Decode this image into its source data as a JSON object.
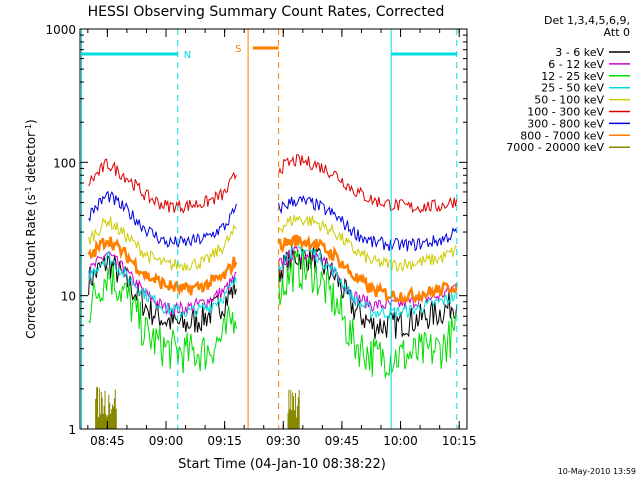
{
  "chart_data": {
    "type": "line",
    "title": "HESSI Observing Summary Count Rates, Corrected",
    "xlabel": "Start Time (04-Jan-10 08:38:22)",
    "ylabel_main": "Corrected Count Rate (s",
    "ylabel_sup1": "-1",
    "ylabel_mid": " detector",
    "ylabel_sup2": "-1",
    "ylabel_end": ")",
    "y_scale": "log",
    "ylim": [
      1,
      1000
    ],
    "xlim": [
      "08:38",
      "10:17"
    ],
    "x_ticks": [
      "08:45",
      "09:00",
      "09:15",
      "09:30",
      "09:45",
      "10:00",
      "10:15"
    ],
    "y_ticks": [
      "1",
      "10",
      "100",
      "1000"
    ],
    "legend_header": [
      "Det 1,3,4,5,6,9,",
      "Att 0"
    ],
    "legend_placement": "right",
    "footer": "10-May-2010 13:59",
    "series": [
      {
        "name": "3 - 6 keV",
        "color": "#000000",
        "day1": [
          [
            8.67,
            13
          ],
          [
            8.75,
            18
          ],
          [
            8.83,
            13
          ],
          [
            8.92,
            8
          ],
          [
            9.0,
            6.5
          ],
          [
            9.08,
            6
          ],
          [
            9.17,
            7
          ],
          [
            9.25,
            9
          ],
          [
            9.3,
            12
          ]
        ],
        "day2": [
          [
            9.48,
            15
          ],
          [
            9.55,
            20
          ],
          [
            9.63,
            19
          ],
          [
            9.72,
            14
          ],
          [
            9.8,
            8
          ],
          [
            9.88,
            6
          ],
          [
            9.97,
            6
          ],
          [
            10.05,
            6.5
          ],
          [
            10.17,
            7.5
          ],
          [
            10.24,
            9
          ]
        ]
      },
      {
        "name": "6 - 12 keV",
        "color": "#cc00cc",
        "day1": [
          [
            8.67,
            15
          ],
          [
            8.75,
            21
          ],
          [
            8.83,
            15
          ],
          [
            8.92,
            10
          ],
          [
            9.0,
            8
          ],
          [
            9.08,
            8
          ],
          [
            9.17,
            9
          ],
          [
            9.25,
            11
          ],
          [
            9.3,
            14
          ]
        ],
        "day2": [
          [
            9.48,
            17
          ],
          [
            9.55,
            21
          ],
          [
            9.63,
            20
          ],
          [
            9.72,
            15
          ],
          [
            9.8,
            10
          ],
          [
            9.88,
            8.5
          ],
          [
            9.97,
            8.5
          ],
          [
            10.05,
            9
          ],
          [
            10.17,
            10
          ],
          [
            10.24,
            12
          ]
        ]
      },
      {
        "name": "12 - 25 keV",
        "color": "#00dd00",
        "day1": [
          [
            8.67,
            8
          ],
          [
            8.75,
            15
          ],
          [
            8.83,
            10
          ],
          [
            8.92,
            5
          ],
          [
            9.0,
            4
          ],
          [
            9.08,
            3.7
          ],
          [
            9.17,
            3.8
          ],
          [
            9.25,
            5
          ],
          [
            9.3,
            8
          ]
        ],
        "day2": [
          [
            9.48,
            11
          ],
          [
            9.55,
            16
          ],
          [
            9.63,
            15
          ],
          [
            9.72,
            9
          ],
          [
            9.8,
            4.5
          ],
          [
            9.88,
            3.5
          ],
          [
            9.97,
            3.5
          ],
          [
            10.05,
            3.6
          ],
          [
            10.17,
            4
          ],
          [
            10.24,
            5.5
          ]
        ]
      },
      {
        "name": "25 - 50 keV",
        "color": "#00dddd",
        "day1": [
          [
            8.67,
            14
          ],
          [
            8.75,
            20
          ],
          [
            8.83,
            14
          ],
          [
            8.92,
            10
          ],
          [
            9.0,
            8
          ],
          [
            9.08,
            7.5
          ],
          [
            9.17,
            8
          ],
          [
            9.25,
            10
          ],
          [
            9.3,
            13
          ]
        ],
        "day2": [
          [
            9.48,
            17
          ],
          [
            9.55,
            23
          ],
          [
            9.63,
            21
          ],
          [
            9.72,
            15
          ],
          [
            9.8,
            9.5
          ],
          [
            9.88,
            7.5
          ],
          [
            9.97,
            7.5
          ],
          [
            10.05,
            7.8
          ],
          [
            10.17,
            9
          ],
          [
            10.24,
            10
          ]
        ]
      },
      {
        "name": "50 - 100 keV",
        "color": "#cccc00",
        "day1": [
          [
            8.67,
            26
          ],
          [
            8.75,
            37
          ],
          [
            8.83,
            28
          ],
          [
            8.92,
            20
          ],
          [
            9.0,
            17
          ],
          [
            9.08,
            17
          ],
          [
            9.17,
            18
          ],
          [
            9.25,
            24
          ],
          [
            9.3,
            32
          ]
        ],
        "day2": [
          [
            9.48,
            32
          ],
          [
            9.55,
            38
          ],
          [
            9.63,
            36
          ],
          [
            9.72,
            30
          ],
          [
            9.8,
            22
          ],
          [
            9.88,
            18
          ],
          [
            9.97,
            17
          ],
          [
            10.05,
            17.5
          ],
          [
            10.17,
            19
          ],
          [
            10.24,
            22
          ]
        ]
      },
      {
        "name": "100 - 300 keV",
        "color": "#dd0000",
        "day1": [
          [
            8.67,
            70
          ],
          [
            8.75,
            98
          ],
          [
            8.83,
            78
          ],
          [
            8.92,
            55
          ],
          [
            9.0,
            47
          ],
          [
            9.08,
            47
          ],
          [
            9.17,
            50
          ],
          [
            9.25,
            58
          ],
          [
            9.3,
            82
          ]
        ],
        "day2": [
          [
            9.48,
            90
          ],
          [
            9.55,
            103
          ],
          [
            9.63,
            98
          ],
          [
            9.72,
            82
          ],
          [
            9.8,
            62
          ],
          [
            9.88,
            52
          ],
          [
            9.97,
            48
          ],
          [
            10.05,
            46
          ],
          [
            10.17,
            47
          ],
          [
            10.24,
            52
          ]
        ]
      },
      {
        "name": "300 - 800 keV",
        "color": "#0000dd",
        "day1": [
          [
            8.67,
            40
          ],
          [
            8.75,
            57
          ],
          [
            8.83,
            44
          ],
          [
            8.92,
            31
          ],
          [
            9.0,
            25
          ],
          [
            9.08,
            25
          ],
          [
            9.17,
            27
          ],
          [
            9.25,
            33
          ],
          [
            9.3,
            45
          ]
        ],
        "day2": [
          [
            9.48,
            45
          ],
          [
            9.55,
            52
          ],
          [
            9.63,
            49
          ],
          [
            9.72,
            40
          ],
          [
            9.8,
            30
          ],
          [
            9.88,
            25
          ],
          [
            9.97,
            24
          ],
          [
            10.05,
            24
          ],
          [
            10.17,
            26
          ],
          [
            10.24,
            30
          ]
        ]
      },
      {
        "name": "800 - 7000 keV",
        "color": "#ff7f00",
        "day1": [
          [
            8.67,
            19
          ],
          [
            8.75,
            27
          ],
          [
            8.83,
            20
          ],
          [
            8.92,
            14
          ],
          [
            9.0,
            12
          ],
          [
            9.08,
            11
          ],
          [
            9.17,
            12
          ],
          [
            9.25,
            14
          ],
          [
            9.3,
            19
          ]
        ],
        "day2": [
          [
            9.48,
            24
          ],
          [
            9.55,
            26
          ],
          [
            9.63,
            25
          ],
          [
            9.72,
            20
          ],
          [
            9.8,
            14
          ],
          [
            9.88,
            11
          ],
          [
            9.97,
            10
          ],
          [
            10.05,
            10
          ],
          [
            10.17,
            11
          ],
          [
            10.24,
            12
          ]
        ]
      },
      {
        "name": "7000 - 20000 keV",
        "color": "#888800",
        "day1": [],
        "day2": []
      }
    ],
    "markers": {
      "night": {
        "label": "N",
        "color": "#00dddd",
        "solid_x": [
          8.64,
          9.96
        ],
        "dashed_x": [
          9.05,
          10.24
        ],
        "bars": [
          [
            8.64,
            9.05,
            650
          ],
          [
            9.96,
            10.24,
            650
          ]
        ]
      },
      "saa": {
        "label": "S",
        "color": "#ff7f00",
        "solid_x": [
          9.35
        ],
        "dashed_x": [
          9.48
        ],
        "bars": [
          [
            9.37,
            9.48,
            720
          ]
        ]
      }
    }
  }
}
